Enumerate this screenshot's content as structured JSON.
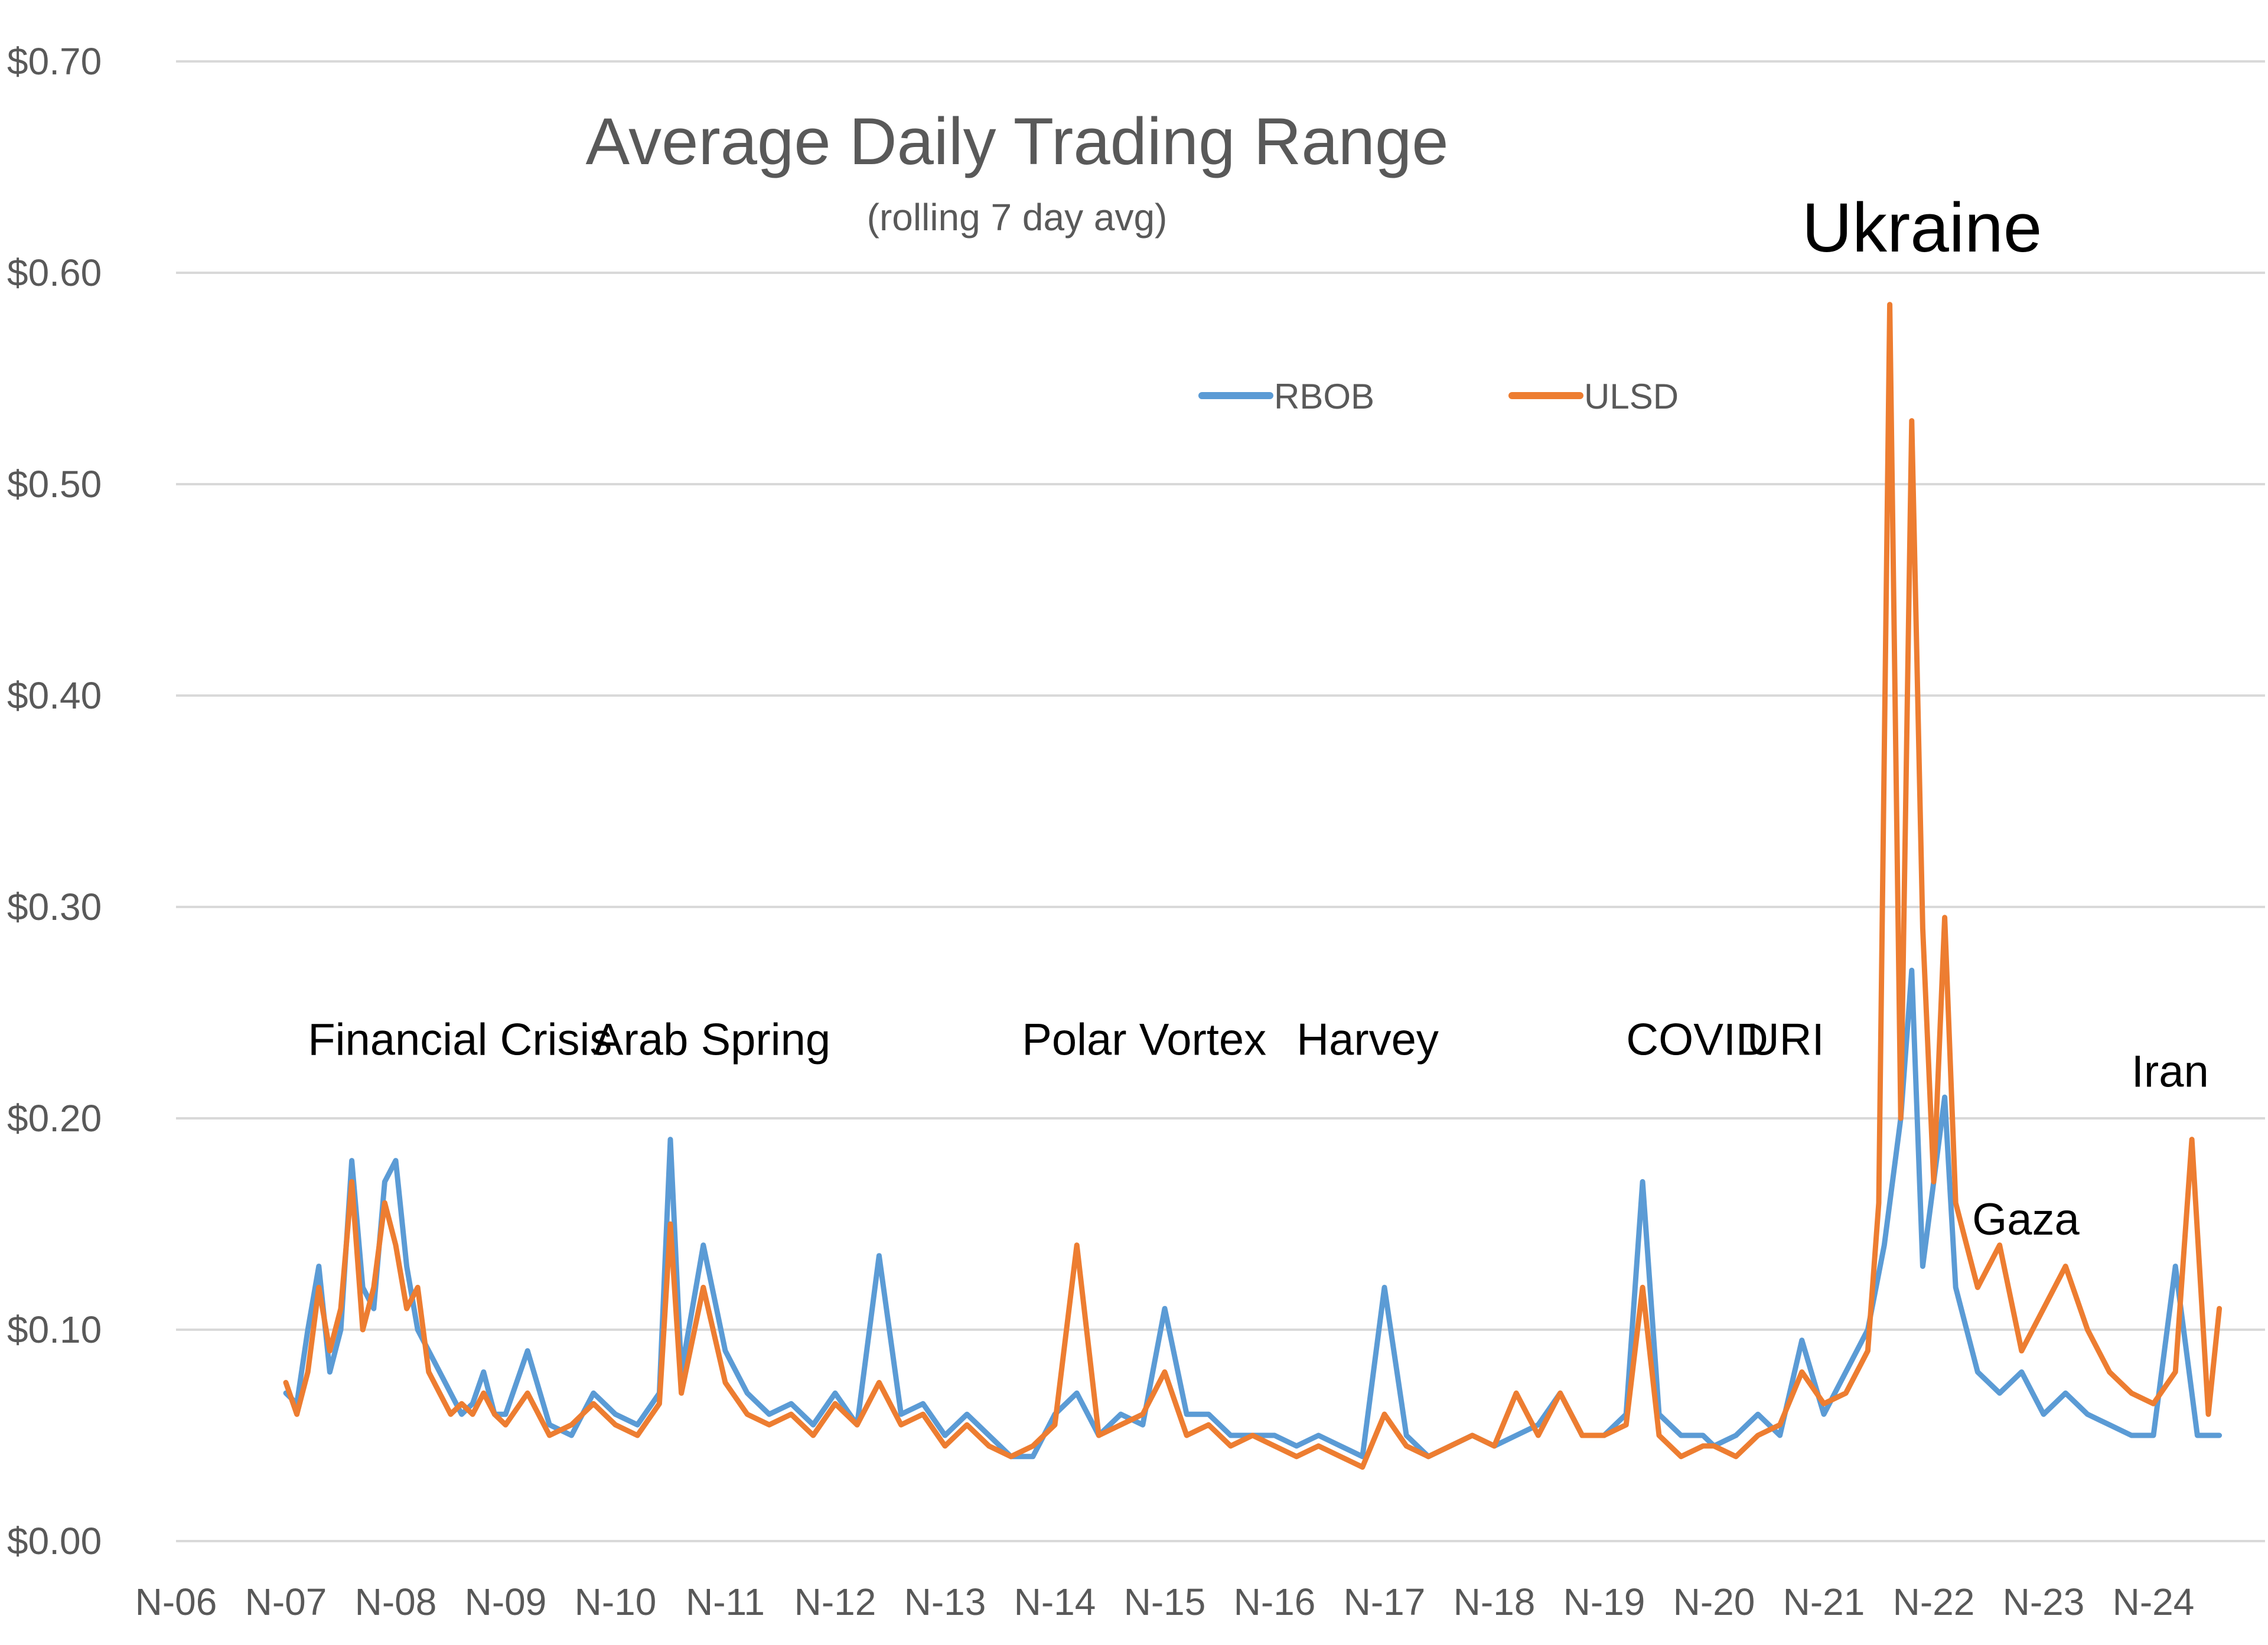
{
  "chart_data": {
    "type": "line",
    "title": "Average Daily Trading Range",
    "subtitle": "(rolling 7 day avg)",
    "xlabel": "",
    "ylabel": "",
    "ylim": [
      0,
      0.7
    ],
    "yticks": [
      0,
      0.1,
      0.2,
      0.3,
      0.4,
      0.5,
      0.6,
      0.7
    ],
    "ytick_labels": [
      "$0.00",
      "$0.10",
      "$0.20",
      "$0.30",
      "$0.40",
      "$0.50",
      "$0.60",
      "$0.70"
    ],
    "xlim": [
      2006.0,
      2024.6
    ],
    "xticks": [
      "N-06",
      "N-07",
      "N-08",
      "N-09",
      "N-10",
      "N-11",
      "N-12",
      "N-13",
      "N-14",
      "N-15",
      "N-16",
      "N-17",
      "N-18",
      "N-19",
      "N-20",
      "N-21",
      "N-22",
      "N-23",
      "N-24"
    ],
    "grid": true,
    "legend_position": "top-center",
    "series": [
      {
        "name": "RBOB",
        "color": "#5B9BD5",
        "x": [
          2007.0,
          2007.1,
          2007.2,
          2007.3,
          2007.4,
          2007.5,
          2007.6,
          2007.7,
          2007.8,
          2007.9,
          2008.0,
          2008.1,
          2008.2,
          2008.3,
          2008.4,
          2008.5,
          2008.6,
          2008.7,
          2008.8,
          2008.9,
          2009.0,
          2009.2,
          2009.4,
          2009.6,
          2009.8,
          2010.0,
          2010.2,
          2010.4,
          2010.5,
          2010.6,
          2010.8,
          2011.0,
          2011.2,
          2011.4,
          2011.6,
          2011.8,
          2012.0,
          2012.2,
          2012.4,
          2012.6,
          2012.8,
          2013.0,
          2013.2,
          2013.4,
          2013.6,
          2013.8,
          2014.0,
          2014.2,
          2014.4,
          2014.6,
          2014.8,
          2015.0,
          2015.2,
          2015.4,
          2015.6,
          2015.8,
          2016.0,
          2016.2,
          2016.4,
          2016.6,
          2016.8,
          2017.0,
          2017.2,
          2017.4,
          2017.6,
          2017.8,
          2018.0,
          2018.2,
          2018.4,
          2018.6,
          2018.8,
          2019.0,
          2019.2,
          2019.35,
          2019.5,
          2019.7,
          2019.9,
          2020.0,
          2020.2,
          2020.4,
          2020.6,
          2020.8,
          2021.0,
          2021.2,
          2021.4,
          2021.55,
          2021.7,
          2021.8,
          2021.9,
          2022.0,
          2022.1,
          2022.2,
          2022.4,
          2022.6,
          2022.8,
          2023.0,
          2023.2,
          2023.4,
          2023.6,
          2023.8,
          2024.0,
          2024.2,
          2024.4,
          2024.6
        ],
        "values": [
          0.07,
          0.065,
          0.1,
          0.13,
          0.08,
          0.1,
          0.18,
          0.12,
          0.11,
          0.17,
          0.18,
          0.13,
          0.1,
          0.09,
          0.08,
          0.07,
          0.06,
          0.065,
          0.08,
          0.06,
          0.06,
          0.09,
          0.055,
          0.05,
          0.07,
          0.06,
          0.055,
          0.07,
          0.19,
          0.08,
          0.14,
          0.09,
          0.07,
          0.06,
          0.065,
          0.055,
          0.07,
          0.055,
          0.135,
          0.06,
          0.065,
          0.05,
          0.06,
          0.05,
          0.04,
          0.04,
          0.06,
          0.07,
          0.05,
          0.06,
          0.055,
          0.11,
          0.06,
          0.06,
          0.05,
          0.05,
          0.05,
          0.045,
          0.05,
          0.045,
          0.04,
          0.12,
          0.05,
          0.04,
          0.045,
          0.05,
          0.045,
          0.05,
          0.055,
          0.07,
          0.05,
          0.05,
          0.06,
          0.17,
          0.06,
          0.05,
          0.05,
          0.045,
          0.05,
          0.06,
          0.05,
          0.095,
          0.06,
          0.08,
          0.1,
          0.14,
          0.2,
          0.27,
          0.13,
          0.17,
          0.21,
          0.12,
          0.08,
          0.07,
          0.08,
          0.06,
          0.07,
          0.06,
          0.055,
          0.05,
          0.05,
          0.13,
          0.05,
          0.05
        ]
      },
      {
        "name": "ULSD",
        "color": "#ED7D31",
        "x": [
          2007.0,
          2007.1,
          2007.2,
          2007.3,
          2007.4,
          2007.5,
          2007.6,
          2007.7,
          2007.8,
          2007.9,
          2008.0,
          2008.1,
          2008.2,
          2008.3,
          2008.4,
          2008.5,
          2008.6,
          2008.7,
          2008.8,
          2008.9,
          2009.0,
          2009.2,
          2009.4,
          2009.6,
          2009.8,
          2010.0,
          2010.2,
          2010.4,
          2010.5,
          2010.6,
          2010.8,
          2011.0,
          2011.2,
          2011.4,
          2011.6,
          2011.8,
          2012.0,
          2012.2,
          2012.4,
          2012.6,
          2012.8,
          2013.0,
          2013.2,
          2013.4,
          2013.6,
          2013.8,
          2014.0,
          2014.2,
          2014.4,
          2014.6,
          2014.8,
          2015.0,
          2015.2,
          2015.4,
          2015.6,
          2015.8,
          2016.0,
          2016.2,
          2016.4,
          2016.6,
          2016.8,
          2017.0,
          2017.2,
          2017.4,
          2017.6,
          2017.8,
          2018.0,
          2018.2,
          2018.4,
          2018.6,
          2018.8,
          2019.0,
          2019.2,
          2019.35,
          2019.5,
          2019.7,
          2019.9,
          2020.0,
          2020.2,
          2020.4,
          2020.6,
          2020.8,
          2021.0,
          2021.2,
          2021.4,
          2021.5,
          2021.6,
          2021.7,
          2021.8,
          2021.9,
          2022.0,
          2022.1,
          2022.2,
          2022.4,
          2022.6,
          2022.8,
          2023.0,
          2023.2,
          2023.4,
          2023.6,
          2023.8,
          2024.0,
          2024.2,
          2024.35,
          2024.5,
          2024.6
        ],
        "values": [
          0.075,
          0.06,
          0.08,
          0.12,
          0.09,
          0.11,
          0.17,
          0.1,
          0.12,
          0.16,
          0.14,
          0.11,
          0.12,
          0.08,
          0.07,
          0.06,
          0.065,
          0.06,
          0.07,
          0.06,
          0.055,
          0.07,
          0.05,
          0.055,
          0.065,
          0.055,
          0.05,
          0.065,
          0.15,
          0.07,
          0.12,
          0.075,
          0.06,
          0.055,
          0.06,
          0.05,
          0.065,
          0.055,
          0.075,
          0.055,
          0.06,
          0.045,
          0.055,
          0.045,
          0.04,
          0.045,
          0.055,
          0.14,
          0.05,
          0.055,
          0.06,
          0.08,
          0.05,
          0.055,
          0.045,
          0.05,
          0.045,
          0.04,
          0.045,
          0.04,
          0.035,
          0.06,
          0.045,
          0.04,
          0.045,
          0.05,
          0.045,
          0.07,
          0.05,
          0.07,
          0.05,
          0.05,
          0.055,
          0.12,
          0.05,
          0.04,
          0.045,
          0.045,
          0.04,
          0.05,
          0.055,
          0.08,
          0.065,
          0.07,
          0.09,
          0.16,
          0.585,
          0.2,
          0.53,
          0.29,
          0.17,
          0.295,
          0.16,
          0.12,
          0.14,
          0.09,
          0.11,
          0.13,
          0.1,
          0.08,
          0.07,
          0.065,
          0.08,
          0.19,
          0.06,
          0.11
        ]
      }
    ],
    "annotations": [
      {
        "text": "Financial Crisis",
        "x": 2007.2,
        "y": 0.23
      },
      {
        "text": "Arab Spring",
        "x": 2009.8,
        "y": 0.23
      },
      {
        "text": "Polar Vortex",
        "x": 2013.7,
        "y": 0.23
      },
      {
        "text": "Harvey",
        "x": 2016.2,
        "y": 0.23
      },
      {
        "text": "COVID",
        "x": 2019.2,
        "y": 0.23
      },
      {
        "text": "URI",
        "x": 2020.3,
        "y": 0.23
      },
      {
        "text": "Ukraine",
        "x": 2020.8,
        "y": 0.61,
        "emphasis": true
      },
      {
        "text": "Gaza",
        "x": 2022.35,
        "y": 0.145
      },
      {
        "text": "Iran",
        "x": 2023.8,
        "y": 0.215
      }
    ]
  }
}
